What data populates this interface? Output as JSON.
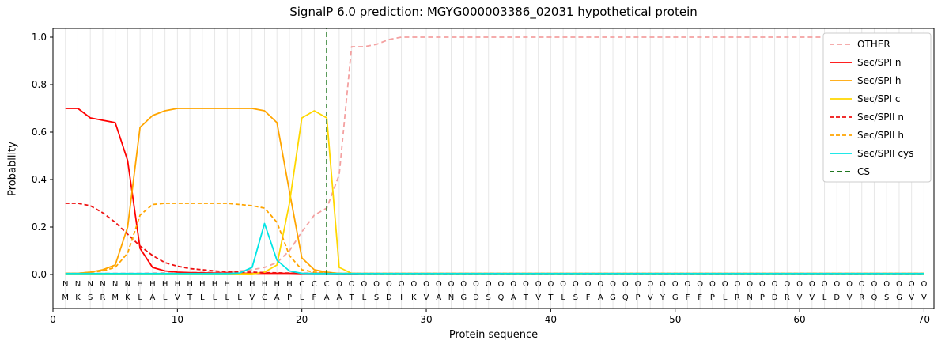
{
  "chart_data": {
    "type": "line",
    "title": "SignalP 6.0 prediction: MGYG000003386_02031 hypothetical protein",
    "xlabel": "Protein sequence",
    "ylabel": "Probability",
    "xlim": [
      0,
      70.8
    ],
    "ylim": [
      0,
      1.04
    ],
    "x_start": 1,
    "xticks": [
      0,
      10,
      20,
      30,
      40,
      50,
      60,
      70
    ],
    "yticks": [
      "0.0",
      "0.2",
      "0.4",
      "0.6",
      "0.8",
      "1.0"
    ],
    "grid": {
      "vertical_per_residue": true,
      "color": "#e7e7e7"
    },
    "legend": {
      "position": "upper right",
      "border_color": "#cccccc",
      "background": "#ffffff"
    },
    "cleavage_site_position": 22,
    "series": [
      {
        "name": "OTHER",
        "color": "#f4a1a1",
        "dash": "6,4",
        "values": [
          0.005,
          0.005,
          0.005,
          0.005,
          0.005,
          0.005,
          0.005,
          0.006,
          0.007,
          0.008,
          0.008,
          0.009,
          0.01,
          0.01,
          0.015,
          0.02,
          0.03,
          0.05,
          0.1,
          0.18,
          0.25,
          0.28,
          0.42,
          0.96,
          0.96,
          0.97,
          0.99,
          1.0,
          1.0,
          1.0,
          1.0,
          1.0,
          1.0,
          1.0,
          1.0,
          1.0,
          1.0,
          1.0,
          1.0,
          1.0,
          1.0,
          1.0,
          1.0,
          1.0,
          1.0,
          1.0,
          1.0,
          1.0,
          1.0,
          1.0,
          1.0,
          1.0,
          1.0,
          1.0,
          1.0,
          1.0,
          1.0,
          1.0,
          1.0,
          1.0,
          1.0,
          1.0,
          1.0,
          1.0,
          1.0,
          1.0,
          1.0,
          1.0,
          1.0,
          1.0
        ]
      },
      {
        "name": "Sec/SPI n",
        "color": "#ff0000",
        "dash": null,
        "values": [
          0.7,
          0.7,
          0.66,
          0.65,
          0.64,
          0.48,
          0.11,
          0.03,
          0.015,
          0.01,
          0.008,
          0.007,
          0.006,
          0.006,
          0.005,
          0.005,
          0.005,
          0.005,
          0.005,
          0.004,
          0.004,
          0.004,
          0.003,
          0.003,
          0.003,
          0.003,
          0.003,
          0.003,
          0.003,
          0.003,
          0.003,
          0.003,
          0.003,
          0.003,
          0.003,
          0.003,
          0.003,
          0.003,
          0.003,
          0.003,
          0.003,
          0.003,
          0.003,
          0.003,
          0.003,
          0.003,
          0.003,
          0.003,
          0.003,
          0.003,
          0.003,
          0.003,
          0.003,
          0.003,
          0.003,
          0.003,
          0.003,
          0.003,
          0.003,
          0.003,
          0.003,
          0.003,
          0.003,
          0.003,
          0.003,
          0.003,
          0.003,
          0.003,
          0.003,
          0.003
        ]
      },
      {
        "name": "Sec/SPI h",
        "color": "#ffa500",
        "dash": null,
        "values": [
          0.005,
          0.005,
          0.01,
          0.02,
          0.04,
          0.2,
          0.62,
          0.67,
          0.69,
          0.7,
          0.7,
          0.7,
          0.7,
          0.7,
          0.7,
          0.7,
          0.69,
          0.64,
          0.35,
          0.07,
          0.02,
          0.01,
          0.004,
          0.004,
          0.004,
          0.004,
          0.004,
          0.004,
          0.004,
          0.004,
          0.004,
          0.004,
          0.004,
          0.004,
          0.004,
          0.004,
          0.004,
          0.004,
          0.004,
          0.004,
          0.004,
          0.004,
          0.004,
          0.004,
          0.004,
          0.004,
          0.004,
          0.004,
          0.004,
          0.004,
          0.004,
          0.004,
          0.004,
          0.004,
          0.004,
          0.004,
          0.004,
          0.004,
          0.004,
          0.004,
          0.004,
          0.004,
          0.004,
          0.004,
          0.004,
          0.004,
          0.004,
          0.004,
          0.004,
          0.004
        ]
      },
      {
        "name": "Sec/SPI c",
        "color": "#ffd700",
        "dash": null,
        "values": [
          0.003,
          0.003,
          0.003,
          0.003,
          0.003,
          0.003,
          0.003,
          0.003,
          0.003,
          0.003,
          0.003,
          0.003,
          0.003,
          0.003,
          0.003,
          0.003,
          0.01,
          0.04,
          0.3,
          0.66,
          0.69,
          0.66,
          0.03,
          0.005,
          0.003,
          0.003,
          0.003,
          0.003,
          0.003,
          0.003,
          0.003,
          0.003,
          0.003,
          0.003,
          0.003,
          0.003,
          0.003,
          0.003,
          0.003,
          0.003,
          0.003,
          0.003,
          0.003,
          0.003,
          0.003,
          0.003,
          0.003,
          0.003,
          0.003,
          0.003,
          0.003,
          0.003,
          0.003,
          0.003,
          0.003,
          0.003,
          0.003,
          0.003,
          0.003,
          0.003,
          0.003,
          0.003,
          0.003,
          0.003,
          0.003,
          0.003,
          0.003,
          0.003,
          0.003,
          0.003
        ]
      },
      {
        "name": "Sec/SPII n",
        "color": "#ee1111",
        "dash": "5,3",
        "values": [
          0.3,
          0.3,
          0.29,
          0.26,
          0.22,
          0.17,
          0.12,
          0.08,
          0.05,
          0.035,
          0.025,
          0.02,
          0.015,
          0.012,
          0.01,
          0.01,
          0.008,
          0.007,
          0.006,
          0.005,
          0.005,
          0.005,
          0.004,
          0.004,
          0.004,
          0.004,
          0.004,
          0.004,
          0.004,
          0.004,
          0.004,
          0.004,
          0.004,
          0.004,
          0.004,
          0.004,
          0.004,
          0.004,
          0.004,
          0.004,
          0.004,
          0.004,
          0.004,
          0.004,
          0.004,
          0.004,
          0.004,
          0.004,
          0.004,
          0.004,
          0.004,
          0.004,
          0.004,
          0.004,
          0.004,
          0.004,
          0.004,
          0.004,
          0.004,
          0.004,
          0.004,
          0.004,
          0.004,
          0.004,
          0.004,
          0.004,
          0.004,
          0.004,
          0.004,
          0.004
        ]
      },
      {
        "name": "Sec/SPII h",
        "color": "#ffa500",
        "dash": "5,3",
        "values": [
          0.005,
          0.005,
          0.01,
          0.015,
          0.03,
          0.09,
          0.25,
          0.295,
          0.3,
          0.3,
          0.3,
          0.3,
          0.3,
          0.3,
          0.295,
          0.29,
          0.28,
          0.22,
          0.08,
          0.02,
          0.01,
          0.008,
          0.005,
          0.005,
          0.005,
          0.005,
          0.005,
          0.005,
          0.005,
          0.005,
          0.005,
          0.005,
          0.005,
          0.005,
          0.005,
          0.005,
          0.005,
          0.005,
          0.005,
          0.005,
          0.005,
          0.005,
          0.005,
          0.005,
          0.005,
          0.005,
          0.005,
          0.005,
          0.005,
          0.005,
          0.005,
          0.005,
          0.005,
          0.005,
          0.005,
          0.005,
          0.005,
          0.005,
          0.005,
          0.005,
          0.005,
          0.005,
          0.005,
          0.005,
          0.005,
          0.005,
          0.005,
          0.005,
          0.005,
          0.005
        ]
      },
      {
        "name": "Sec/SPII cys",
        "color": "#00e5e5",
        "dash": null,
        "values": [
          0.004,
          0.004,
          0.004,
          0.004,
          0.004,
          0.004,
          0.004,
          0.004,
          0.004,
          0.004,
          0.004,
          0.004,
          0.004,
          0.004,
          0.006,
          0.03,
          0.215,
          0.06,
          0.015,
          0.005,
          0.004,
          0.004,
          0.004,
          0.004,
          0.004,
          0.004,
          0.004,
          0.004,
          0.004,
          0.004,
          0.004,
          0.004,
          0.004,
          0.004,
          0.004,
          0.004,
          0.004,
          0.004,
          0.004,
          0.004,
          0.004,
          0.004,
          0.004,
          0.004,
          0.004,
          0.004,
          0.004,
          0.004,
          0.004,
          0.004,
          0.004,
          0.004,
          0.004,
          0.004,
          0.004,
          0.004,
          0.004,
          0.004,
          0.004,
          0.004,
          0.004,
          0.004,
          0.004,
          0.004,
          0.004,
          0.004,
          0.004,
          0.004,
          0.004,
          0.004
        ]
      },
      {
        "name": "CS",
        "color": "#006400",
        "dash": "6,4",
        "type": "vline",
        "x": 22
      }
    ],
    "sequence": {
      "residues": "MKSRMKLALVTLLLLVCAPLFAATLSDIKVANGDSQATVTLSFAGQPVYGFFPLRNPDRVVLDVRQSGVV",
      "labels": "NNNNNNHHHHHHHHHHHHHCCCOOOOOOOOOOOOOOOOOOOOOOOOOOOOOOOOOOOOOOOOOOOOOOOO",
      "label_colors": {
        "N": "#ff0000",
        "H": "#ffa500",
        "C": "#ffd700",
        "O": "#aaaaaa"
      },
      "residue_color": "#000000"
    }
  }
}
